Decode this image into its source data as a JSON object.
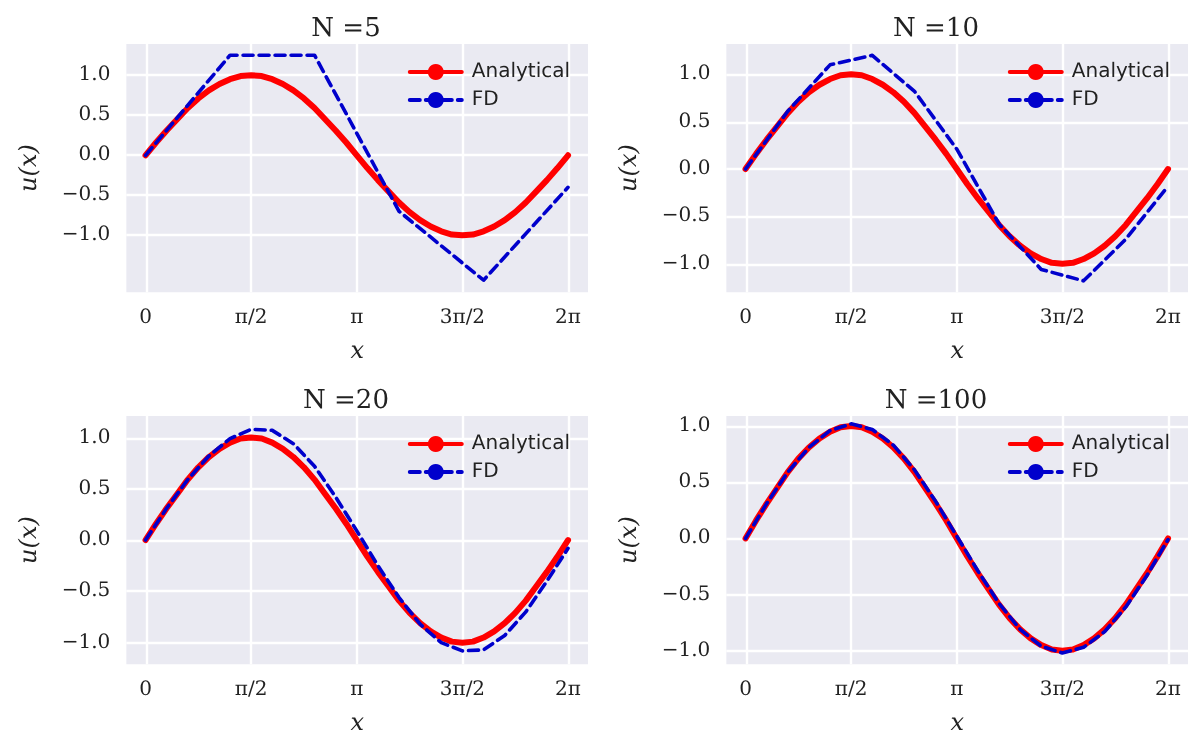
{
  "chart_data": [
    {
      "type": "line",
      "title": "N =5",
      "xlabel": "x",
      "ylabel": "u(x)",
      "grid": true,
      "legend": "top right",
      "xlim": [
        -0.285,
        6.58
      ],
      "ylim": [
        -1.71,
        1.39
      ],
      "xticks": [
        {
          "value": 0,
          "label": "0"
        },
        {
          "value": 1.5708,
          "label": "π/2"
        },
        {
          "value": 3.1416,
          "label": "π"
        },
        {
          "value": 4.7124,
          "label": "3π/2"
        },
        {
          "value": 6.2832,
          "label": "2π"
        }
      ],
      "yticks": [
        {
          "value": -1,
          "label": "−1.0"
        },
        {
          "value": -0.5,
          "label": "−0.5"
        },
        {
          "value": 0,
          "label": "0.0"
        },
        {
          "value": 0.5,
          "label": "0.5"
        },
        {
          "value": 1,
          "label": "1.0"
        }
      ],
      "series": [
        {
          "name": "Analytical",
          "color": "#ff0000",
          "line_style": "solid",
          "x": [
            0,
            0.157,
            0.314,
            0.471,
            0.628,
            0.785,
            0.942,
            1.1,
            1.257,
            1.414,
            1.571,
            1.728,
            1.885,
            2.042,
            2.199,
            2.356,
            2.513,
            2.67,
            2.827,
            2.985,
            3.142,
            3.299,
            3.456,
            3.613,
            3.77,
            3.927,
            4.084,
            4.241,
            4.398,
            4.555,
            4.712,
            4.869,
            5.027,
            5.184,
            5.341,
            5.498,
            5.655,
            5.812,
            5.969,
            6.126,
            6.283
          ],
          "values": [
            0,
            0.16,
            0.31,
            0.45,
            0.59,
            0.71,
            0.81,
            0.89,
            0.95,
            0.99,
            1,
            0.99,
            0.95,
            0.89,
            0.81,
            0.71,
            0.59,
            0.45,
            0.31,
            0.16,
            0,
            -0.16,
            -0.31,
            -0.45,
            -0.59,
            -0.71,
            -0.81,
            -0.89,
            -0.95,
            -0.99,
            -1,
            -0.99,
            -0.95,
            -0.89,
            -0.81,
            -0.71,
            -0.59,
            -0.45,
            -0.31,
            -0.16,
            0
          ]
        },
        {
          "name": "FD",
          "color": "#0000cc",
          "line_style": "dashed",
          "x": [
            0,
            1.257,
            2.513,
            3.77,
            5.027,
            6.283
          ],
          "values": [
            0,
            1.25,
            1.25,
            -0.7,
            -1.56,
            -0.4
          ]
        }
      ]
    },
    {
      "type": "line",
      "title": "N =10",
      "xlabel": "x",
      "ylabel": "u(x)",
      "grid": true,
      "legend": "top right",
      "xlim": [
        -0.285,
        6.58
      ],
      "ylim": [
        -1.3,
        1.32
      ],
      "xticks": [
        {
          "value": 0,
          "label": "0"
        },
        {
          "value": 1.5708,
          "label": "π/2"
        },
        {
          "value": 3.1416,
          "label": "π"
        },
        {
          "value": 4.7124,
          "label": "3π/2"
        },
        {
          "value": 6.2832,
          "label": "2π"
        }
      ],
      "yticks": [
        {
          "value": -1,
          "label": "−1.0"
        },
        {
          "value": -0.5,
          "label": "−0.5"
        },
        {
          "value": 0,
          "label": "0.0"
        },
        {
          "value": 0.5,
          "label": "0.5"
        },
        {
          "value": 1,
          "label": "1.0"
        }
      ],
      "series": [
        {
          "name": "Analytical",
          "color": "#ff0000",
          "line_style": "solid",
          "x": [
            0,
            0.157,
            0.314,
            0.471,
            0.628,
            0.785,
            0.942,
            1.1,
            1.257,
            1.414,
            1.571,
            1.728,
            1.885,
            2.042,
            2.199,
            2.356,
            2.513,
            2.67,
            2.827,
            2.985,
            3.142,
            3.299,
            3.456,
            3.613,
            3.77,
            3.927,
            4.084,
            4.241,
            4.398,
            4.555,
            4.712,
            4.869,
            5.027,
            5.184,
            5.341,
            5.498,
            5.655,
            5.812,
            5.969,
            6.126,
            6.283
          ],
          "values": [
            0,
            0.16,
            0.31,
            0.45,
            0.59,
            0.71,
            0.81,
            0.89,
            0.95,
            0.99,
            1,
            0.99,
            0.95,
            0.89,
            0.81,
            0.71,
            0.59,
            0.45,
            0.31,
            0.16,
            0,
            -0.16,
            -0.31,
            -0.45,
            -0.59,
            -0.71,
            -0.81,
            -0.89,
            -0.95,
            -0.99,
            -1,
            -0.99,
            -0.95,
            -0.89,
            -0.81,
            -0.71,
            -0.59,
            -0.45,
            -0.31,
            -0.16,
            0
          ]
        },
        {
          "name": "FD",
          "color": "#0000cc",
          "line_style": "dashed",
          "x": [
            0,
            0.628,
            1.257,
            1.885,
            2.513,
            3.142,
            3.77,
            4.398,
            5.027,
            5.655,
            6.283
          ],
          "values": [
            0,
            0.61,
            1.1,
            1.2,
            0.82,
            0.21,
            -0.58,
            -1.06,
            -1.18,
            -0.74,
            -0.18
          ]
        }
      ]
    },
    {
      "type": "line",
      "title": "N =20",
      "xlabel": "x",
      "ylabel": "u(x)",
      "grid": true,
      "legend": "top right",
      "xlim": [
        -0.285,
        6.58
      ],
      "ylim": [
        -1.21,
        1.21
      ],
      "xticks": [
        {
          "value": 0,
          "label": "0"
        },
        {
          "value": 1.5708,
          "label": "π/2"
        },
        {
          "value": 3.1416,
          "label": "π"
        },
        {
          "value": 4.7124,
          "label": "3π/2"
        },
        {
          "value": 6.2832,
          "label": "2π"
        }
      ],
      "yticks": [
        {
          "value": -1,
          "label": "−1.0"
        },
        {
          "value": -0.5,
          "label": "−0.5"
        },
        {
          "value": 0,
          "label": "0.0"
        },
        {
          "value": 0.5,
          "label": "0.5"
        },
        {
          "value": 1,
          "label": "1.0"
        }
      ],
      "series": [
        {
          "name": "Analytical",
          "color": "#ff0000",
          "line_style": "solid",
          "x": [
            0,
            0.157,
            0.314,
            0.471,
            0.628,
            0.785,
            0.942,
            1.1,
            1.257,
            1.414,
            1.571,
            1.728,
            1.885,
            2.042,
            2.199,
            2.356,
            2.513,
            2.67,
            2.827,
            2.985,
            3.142,
            3.299,
            3.456,
            3.613,
            3.77,
            3.927,
            4.084,
            4.241,
            4.398,
            4.555,
            4.712,
            4.869,
            5.027,
            5.184,
            5.341,
            5.498,
            5.655,
            5.812,
            5.969,
            6.126,
            6.283
          ],
          "values": [
            0,
            0.16,
            0.31,
            0.45,
            0.59,
            0.71,
            0.81,
            0.89,
            0.95,
            0.99,
            1,
            0.99,
            0.95,
            0.89,
            0.81,
            0.71,
            0.59,
            0.45,
            0.31,
            0.16,
            0,
            -0.16,
            -0.31,
            -0.45,
            -0.59,
            -0.71,
            -0.81,
            -0.89,
            -0.95,
            -0.99,
            -1,
            -0.99,
            -0.95,
            -0.89,
            -0.81,
            -0.71,
            -0.59,
            -0.45,
            -0.31,
            -0.16,
            0
          ]
        },
        {
          "name": "FD",
          "color": "#0000cc",
          "line_style": "dashed",
          "x": [
            0,
            0.314,
            0.628,
            0.942,
            1.257,
            1.571,
            1.885,
            2.199,
            2.513,
            2.827,
            3.142,
            3.456,
            3.77,
            4.084,
            4.398,
            4.712,
            5.027,
            5.341,
            5.655,
            5.969,
            6.283
          ],
          "values": [
            0,
            0.31,
            0.59,
            0.82,
            0.99,
            1.08,
            1.07,
            0.94,
            0.72,
            0.42,
            0.09,
            -0.25,
            -0.56,
            -0.82,
            -1,
            -1.08,
            -1.07,
            -0.93,
            -0.7,
            -0.4,
            -0.08
          ]
        }
      ]
    },
    {
      "type": "line",
      "title": "N =100",
      "xlabel": "x",
      "ylabel": "u(x)",
      "grid": true,
      "legend": "top right",
      "xlim": [
        -0.285,
        6.58
      ],
      "ylim": [
        -1.12,
        1.09
      ],
      "xticks": [
        {
          "value": 0,
          "label": "0"
        },
        {
          "value": 1.5708,
          "label": "π/2"
        },
        {
          "value": 3.1416,
          "label": "π"
        },
        {
          "value": 4.7124,
          "label": "3π/2"
        },
        {
          "value": 6.2832,
          "label": "2π"
        }
      ],
      "yticks": [
        {
          "value": -1,
          "label": "−1.0"
        },
        {
          "value": -0.5,
          "label": "−0.5"
        },
        {
          "value": 0,
          "label": "0.0"
        },
        {
          "value": 0.5,
          "label": "0.5"
        },
        {
          "value": 1,
          "label": "1.0"
        }
      ],
      "series": [
        {
          "name": "Analytical",
          "color": "#ff0000",
          "line_style": "solid",
          "x": [
            0,
            0.157,
            0.314,
            0.471,
            0.628,
            0.785,
            0.942,
            1.1,
            1.257,
            1.414,
            1.571,
            1.728,
            1.885,
            2.042,
            2.199,
            2.356,
            2.513,
            2.67,
            2.827,
            2.985,
            3.142,
            3.299,
            3.456,
            3.613,
            3.77,
            3.927,
            4.084,
            4.241,
            4.398,
            4.555,
            4.712,
            4.869,
            5.027,
            5.184,
            5.341,
            5.498,
            5.655,
            5.812,
            5.969,
            6.126,
            6.283
          ],
          "values": [
            0,
            0.16,
            0.31,
            0.45,
            0.59,
            0.71,
            0.81,
            0.89,
            0.95,
            0.99,
            1,
            0.99,
            0.95,
            0.89,
            0.81,
            0.71,
            0.59,
            0.45,
            0.31,
            0.16,
            0,
            -0.16,
            -0.31,
            -0.45,
            -0.59,
            -0.71,
            -0.81,
            -0.89,
            -0.95,
            -0.99,
            -1,
            -0.99,
            -0.95,
            -0.89,
            -0.81,
            -0.71,
            -0.59,
            -0.45,
            -0.31,
            -0.16,
            0
          ]
        },
        {
          "name": "FD",
          "color": "#0000cc",
          "line_style": "dashed",
          "x": [
            0,
            0.314,
            0.628,
            0.942,
            1.257,
            1.571,
            1.885,
            2.199,
            2.513,
            2.827,
            3.142,
            3.456,
            3.77,
            4.084,
            4.398,
            4.712,
            5.027,
            5.341,
            5.655,
            5.969,
            6.283
          ],
          "values": [
            0,
            0.31,
            0.59,
            0.81,
            0.96,
            1.02,
            0.97,
            0.83,
            0.61,
            0.33,
            0.02,
            -0.29,
            -0.58,
            -0.81,
            -0.96,
            -1.02,
            -0.97,
            -0.83,
            -0.61,
            -0.33,
            -0.01
          ]
        }
      ]
    }
  ]
}
